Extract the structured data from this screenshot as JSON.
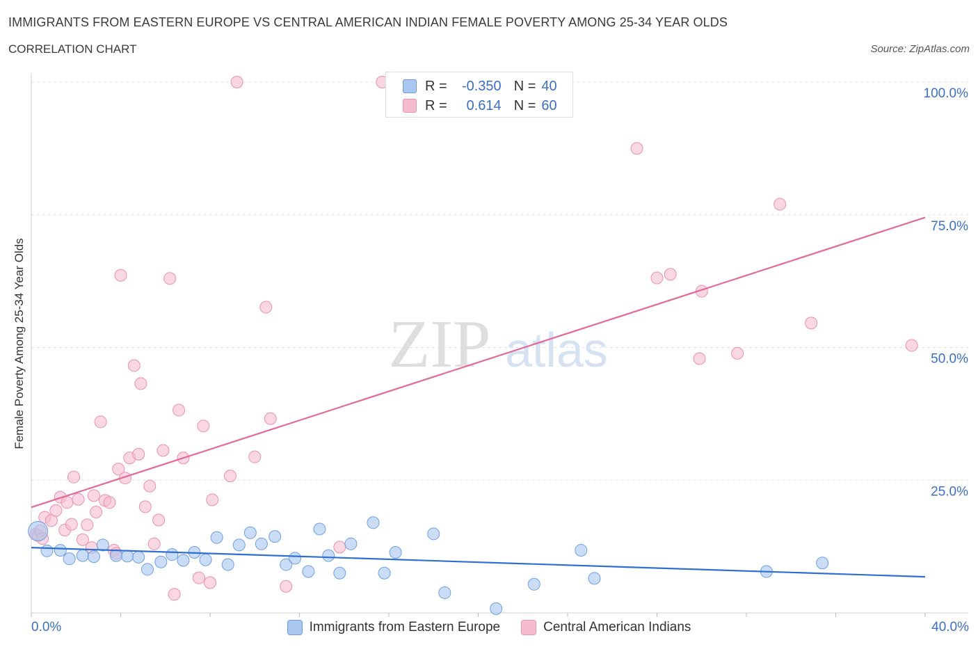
{
  "title": "IMMIGRANTS FROM EASTERN EUROPE VS CENTRAL AMERICAN INDIAN FEMALE POVERTY AMONG 25-34 YEAR OLDS",
  "subtitle": "CORRELATION CHART",
  "source": "Source: ZipAtlas.com",
  "watermark": {
    "zip": "ZIP",
    "atlas": "atlas"
  },
  "legend": {
    "r_label": "R =",
    "n_label": "N =",
    "rows": [
      {
        "r": "-0.350",
        "n": "40",
        "fill": "#a8c6f0",
        "stroke": "#6d9fe0"
      },
      {
        "r": "0.614",
        "n": "60",
        "fill": "#f5bcd0",
        "stroke": "#eb8fb0"
      }
    ]
  },
  "colors": {
    "blue_fill": "#a8c6f0",
    "blue_stroke": "#6d9fe0",
    "blue_line": "#2e6fd0",
    "pink_fill": "#f5bcd0",
    "pink_stroke": "#eb8fb0",
    "pink_line": "#e06a98",
    "tick_label": "#3c6fc4",
    "grid": "#e3e3e3"
  },
  "chart_data": {
    "type": "scatter",
    "title": "IMMIGRANTS FROM EASTERN EUROPE VS CENTRAL AMERICAN INDIAN FEMALE POVERTY AMONG 25-34 YEAR OLDS",
    "xlabel": "",
    "ylabel": "Female Poverty Among 25-34 Year Olds",
    "xlim": [
      0,
      40
    ],
    "ylim": [
      0,
      100
    ],
    "x_tick_labels": [
      "0.0%",
      "40.0%"
    ],
    "y_ticks": [
      25,
      50,
      75,
      100
    ],
    "y_tick_labels": [
      "25.0%",
      "50.0%",
      "75.0%",
      "100.0%"
    ],
    "grid": true,
    "legend_position": "top-center",
    "series": [
      {
        "name": "Immigrants from Eastern Europe",
        "color": "#6d9fe0",
        "trend": {
          "x": [
            0,
            40
          ],
          "y": [
            12.3,
            6.8
          ]
        },
        "points": [
          {
            "x": 0.3,
            "y": 15.4
          },
          {
            "x": 0.7,
            "y": 11.7
          },
          {
            "x": 1.3,
            "y": 11.8
          },
          {
            "x": 1.7,
            "y": 10.2
          },
          {
            "x": 2.3,
            "y": 10.8
          },
          {
            "x": 2.8,
            "y": 10.6
          },
          {
            "x": 3.2,
            "y": 12.8
          },
          {
            "x": 3.8,
            "y": 10.8
          },
          {
            "x": 4.3,
            "y": 10.7
          },
          {
            "x": 4.8,
            "y": 10.5
          },
          {
            "x": 5.2,
            "y": 8.2
          },
          {
            "x": 5.8,
            "y": 9.6
          },
          {
            "x": 6.3,
            "y": 11.0
          },
          {
            "x": 6.8,
            "y": 9.9
          },
          {
            "x": 7.3,
            "y": 11.4
          },
          {
            "x": 7.8,
            "y": 10.0
          },
          {
            "x": 8.3,
            "y": 14.2
          },
          {
            "x": 8.8,
            "y": 9.1
          },
          {
            "x": 9.3,
            "y": 12.8
          },
          {
            "x": 9.8,
            "y": 15.1
          },
          {
            "x": 10.3,
            "y": 13.0
          },
          {
            "x": 10.9,
            "y": 14.4
          },
          {
            "x": 11.4,
            "y": 9.1
          },
          {
            "x": 11.8,
            "y": 10.3
          },
          {
            "x": 12.4,
            "y": 7.8
          },
          {
            "x": 12.9,
            "y": 15.8
          },
          {
            "x": 13.3,
            "y": 10.8
          },
          {
            "x": 13.8,
            "y": 7.5
          },
          {
            "x": 14.3,
            "y": 13.0
          },
          {
            "x": 15.3,
            "y": 17.0
          },
          {
            "x": 15.8,
            "y": 7.5
          },
          {
            "x": 16.3,
            "y": 11.4
          },
          {
            "x": 18.0,
            "y": 14.9
          },
          {
            "x": 18.5,
            "y": 3.8
          },
          {
            "x": 20.8,
            "y": 0.8
          },
          {
            "x": 22.5,
            "y": 5.4
          },
          {
            "x": 24.6,
            "y": 11.8
          },
          {
            "x": 25.2,
            "y": 6.5
          },
          {
            "x": 32.9,
            "y": 7.8
          },
          {
            "x": 35.4,
            "y": 9.4
          }
        ]
      },
      {
        "name": "Central American Indians",
        "color": "#eb8fb0",
        "trend": {
          "x": [
            0,
            40
          ],
          "y": [
            19.9,
            74.5
          ]
        },
        "points": [
          {
            "x": 0.2,
            "y": 14.8
          },
          {
            "x": 0.6,
            "y": 18.0
          },
          {
            "x": 0.9,
            "y": 17.4
          },
          {
            "x": 1.1,
            "y": 19.3
          },
          {
            "x": 1.3,
            "y": 21.8
          },
          {
            "x": 1.5,
            "y": 15.6
          },
          {
            "x": 1.6,
            "y": 20.8
          },
          {
            "x": 1.8,
            "y": 16.7
          },
          {
            "x": 1.9,
            "y": 25.6
          },
          {
            "x": 2.1,
            "y": 21.4
          },
          {
            "x": 2.3,
            "y": 13.8
          },
          {
            "x": 2.5,
            "y": 16.6
          },
          {
            "x": 2.7,
            "y": 12.3
          },
          {
            "x": 2.8,
            "y": 22.1
          },
          {
            "x": 2.9,
            "y": 19.0
          },
          {
            "x": 3.1,
            "y": 36.0
          },
          {
            "x": 3.3,
            "y": 21.2
          },
          {
            "x": 3.5,
            "y": 20.8
          },
          {
            "x": 3.7,
            "y": 11.8
          },
          {
            "x": 3.8,
            "y": 11.2
          },
          {
            "x": 3.9,
            "y": 27.1
          },
          {
            "x": 4.0,
            "y": 63.6
          },
          {
            "x": 4.2,
            "y": 25.4
          },
          {
            "x": 4.4,
            "y": 29.2
          },
          {
            "x": 4.6,
            "y": 46.6
          },
          {
            "x": 4.8,
            "y": 29.9
          },
          {
            "x": 4.9,
            "y": 43.2
          },
          {
            "x": 5.1,
            "y": 20.0
          },
          {
            "x": 5.3,
            "y": 23.9
          },
          {
            "x": 5.5,
            "y": 13.0
          },
          {
            "x": 5.7,
            "y": 17.5
          },
          {
            "x": 5.9,
            "y": 30.6
          },
          {
            "x": 6.2,
            "y": 63.0
          },
          {
            "x": 6.4,
            "y": 3.5
          },
          {
            "x": 6.6,
            "y": 38.2
          },
          {
            "x": 6.8,
            "y": 29.2
          },
          {
            "x": 7.5,
            "y": 6.6
          },
          {
            "x": 7.7,
            "y": 35.2
          },
          {
            "x": 8.0,
            "y": 5.7
          },
          {
            "x": 8.1,
            "y": 21.3
          },
          {
            "x": 8.9,
            "y": 25.8
          },
          {
            "x": 9.2,
            "y": 100.0
          },
          {
            "x": 10.0,
            "y": 29.4
          },
          {
            "x": 10.5,
            "y": 57.6
          },
          {
            "x": 10.7,
            "y": 36.6
          },
          {
            "x": 11.4,
            "y": 5.0
          },
          {
            "x": 13.8,
            "y": 12.4
          },
          {
            "x": 15.7,
            "y": 100.0
          },
          {
            "x": 27.1,
            "y": 87.5
          },
          {
            "x": 28.0,
            "y": 63.1
          },
          {
            "x": 28.6,
            "y": 63.8
          },
          {
            "x": 29.9,
            "y": 47.9
          },
          {
            "x": 30.0,
            "y": 60.6
          },
          {
            "x": 31.6,
            "y": 48.9
          },
          {
            "x": 33.5,
            "y": 77.0
          },
          {
            "x": 34.9,
            "y": 54.6
          },
          {
            "x": 39.4,
            "y": 50.4
          },
          {
            "x": 0.3,
            "y": 14.6
          },
          {
            "x": 0.4,
            "y": 15.5
          },
          {
            "x": 0.5,
            "y": 14.0
          }
        ]
      }
    ]
  }
}
